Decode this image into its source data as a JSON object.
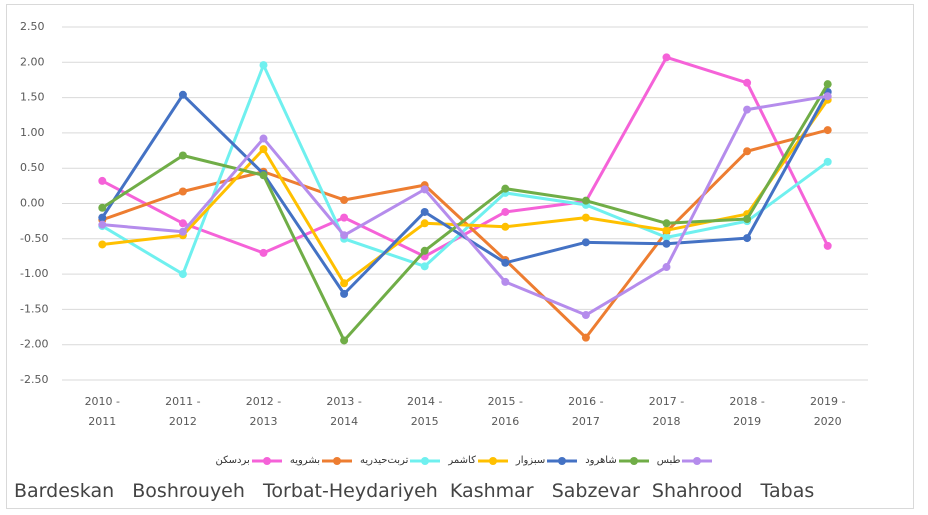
{
  "chart_data": {
    "type": "line",
    "categories": [
      "2010 - 2011",
      "2011 - 2012",
      "2012 - 2013",
      "2013 - 2014",
      "2014 - 2015",
      "2015 - 2016",
      "2016 - 2017",
      "2017 - 2018",
      "2018 - 2019",
      "2019 - 2020"
    ],
    "series": [
      {
        "name": "بردسکن",
        "color": "#f562d8",
        "values": [
          0.32,
          -0.28,
          -0.7,
          -0.2,
          -0.75,
          -0.12,
          0.03,
          2.07,
          1.71,
          -0.6
        ]
      },
      {
        "name": "بشرویه",
        "color": "#ed7d31",
        "values": [
          -0.23,
          0.17,
          0.45,
          0.05,
          0.26,
          -0.8,
          -1.9,
          -0.4,
          0.74,
          1.04
        ]
      },
      {
        "name": "تربت‌حیدریه",
        "color": "#6ff0ef",
        "values": [
          -0.32,
          -1.0,
          1.96,
          -0.5,
          -0.89,
          0.15,
          -0.02,
          -0.48,
          -0.25,
          0.59
        ]
      },
      {
        "name": "کاشمر",
        "color": "#ffc000",
        "values": [
          -0.58,
          -0.45,
          0.77,
          -1.13,
          -0.28,
          -0.33,
          -0.2,
          -0.38,
          -0.15,
          1.47
        ]
      },
      {
        "name": "سبزوار",
        "color": "#4472c4",
        "values": [
          -0.2,
          1.54,
          0.42,
          -1.28,
          -0.12,
          -0.84,
          -0.55,
          -0.57,
          -0.49,
          1.58
        ]
      },
      {
        "name": "شاهرود",
        "color": "#70ad47",
        "values": [
          -0.06,
          0.68,
          0.4,
          -1.94,
          -0.67,
          0.21,
          0.04,
          -0.28,
          -0.22,
          1.69
        ]
      },
      {
        "name": "طبس",
        "color": "#b58cec",
        "values": [
          -0.3,
          -0.4,
          0.92,
          -0.45,
          0.2,
          -1.11,
          -1.58,
          -0.9,
          1.33,
          1.52
        ]
      }
    ],
    "ylim": [
      -2.5,
      2.5
    ],
    "yticks": [
      {
        "value": -2.5,
        "label": "-2.50"
      },
      {
        "value": -2,
        "label": "-2.00"
      },
      {
        "value": -1.5,
        "label": "-1.50"
      },
      {
        "value": -1,
        "label": "-1.00"
      },
      {
        "value": -0.5,
        "label": "-0.50"
      },
      {
        "value": 0,
        "label": "0.00"
      },
      {
        "value": 0.5,
        "label": "0.50"
      },
      {
        "value": 1,
        "label": "1.00"
      },
      {
        "value": 1.5,
        "label": "1.50"
      },
      {
        "value": 2,
        "label": "2.00"
      },
      {
        "value": 2.5,
        "label": "2.50"
      }
    ],
    "grid": true,
    "caption": "Bardeskan   Boshrouyeh   Torbat-Heydariyeh  Kashmar   Sabzevar  Shahrood   Tabas"
  }
}
